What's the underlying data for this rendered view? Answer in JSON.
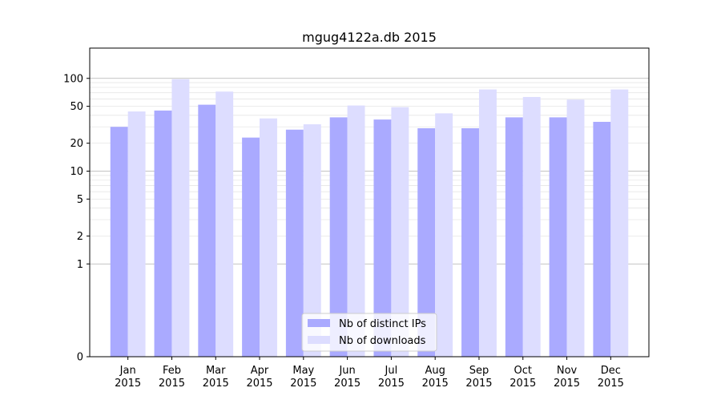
{
  "chart_data": {
    "type": "bar",
    "title": "mgug4122a.db 2015",
    "xlabel": "",
    "ylabel": "",
    "yscale": "symlog",
    "grid": true,
    "legend_position": "bottom-center",
    "categories": [
      [
        "Jan",
        "2015"
      ],
      [
        "Feb",
        "2015"
      ],
      [
        "Mar",
        "2015"
      ],
      [
        "Apr",
        "2015"
      ],
      [
        "May",
        "2015"
      ],
      [
        "Jun",
        "2015"
      ],
      [
        "Jul",
        "2015"
      ],
      [
        "Aug",
        "2015"
      ],
      [
        "Sep",
        "2015"
      ],
      [
        "Oct",
        "2015"
      ],
      [
        "Nov",
        "2015"
      ],
      [
        "Dec",
        "2015"
      ]
    ],
    "yticks": [
      0,
      1,
      2,
      5,
      10,
      20,
      50,
      100
    ],
    "ytick_labels": [
      "0",
      "1",
      "2",
      "5",
      "10",
      "20",
      "50",
      "100"
    ],
    "series": [
      {
        "name": "Nb of distinct IPs",
        "color": "#aaaaff",
        "values": [
          30,
          45,
          52,
          23,
          28,
          38,
          36,
          29,
          29,
          38,
          38,
          34
        ]
      },
      {
        "name": "Nb of downloads",
        "color": "#ddddff",
        "values": [
          44,
          98,
          72,
          37,
          32,
          51,
          49,
          42,
          76,
          63,
          59,
          76
        ]
      }
    ]
  }
}
